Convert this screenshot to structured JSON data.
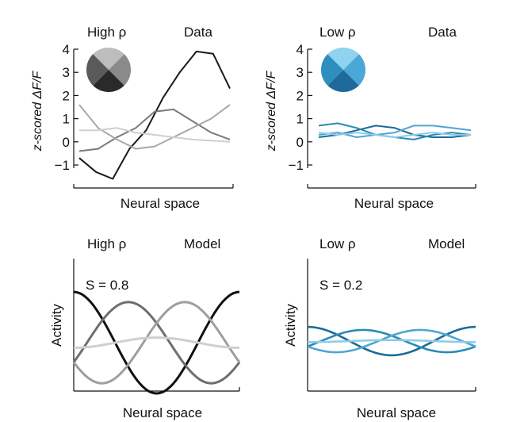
{
  "panels": [
    {
      "id": "data-high",
      "title_left": "High ρ",
      "title_right": "Data",
      "ylabel": "z-scored ΔF/F",
      "xlabel": "Neural space",
      "yticks": [
        "4",
        "3",
        "2",
        "1",
        "0",
        "−1"
      ]
    },
    {
      "id": "data-low",
      "title_left": "Low ρ",
      "title_right": "Data",
      "ylabel": "z-scored ΔF/F",
      "xlabel": "Neural space",
      "yticks": [
        "4",
        "3",
        "2",
        "1",
        "0",
        "−1"
      ]
    },
    {
      "id": "model-high",
      "title_left": "High ρ",
      "title_right": "Model",
      "ylabel": "Activity",
      "xlabel": "Neural space",
      "annotation": "S = 0.8"
    },
    {
      "id": "model-low",
      "title_left": "Low ρ",
      "title_right": "Model",
      "ylabel": "Activity",
      "xlabel": "Neural space",
      "annotation": "S = 0.2"
    }
  ],
  "chart_data": [
    {
      "type": "line",
      "panel": "data-high",
      "title": "High ρ Data",
      "xlabel": "Neural space",
      "ylabel": "z-scored ΔF/F",
      "ylim": [
        -1.5,
        4
      ],
      "x": [
        0,
        1,
        2,
        3,
        4,
        5,
        6,
        7,
        8,
        9,
        10
      ],
      "series": [
        {
          "color": "#1a1a1a",
          "values": [
            -0.7,
            -1.3,
            -1.6,
            -0.3,
            0.5,
            1.9,
            3.0,
            3.9,
            3.8,
            2.3,
            null
          ]
        },
        {
          "color": "#7a7a7a",
          "values": [
            -0.4,
            -0.3,
            0.2,
            0.6,
            1.3,
            1.4,
            0.9,
            0.4,
            0.1,
            null,
            null
          ]
        },
        {
          "color": "#a8a8a8",
          "values": [
            1.6,
            0.6,
            0.1,
            -0.3,
            -0.2,
            0.2,
            0.6,
            1.0,
            1.6,
            null,
            null
          ]
        },
        {
          "color": "#cfcfcf",
          "values": [
            0.5,
            0.5,
            0.6,
            0.4,
            0.3,
            0.2,
            0.1,
            0.05,
            0.0,
            null,
            null
          ]
        }
      ],
      "grid": false
    },
    {
      "type": "line",
      "panel": "data-low",
      "title": "Low ρ Data",
      "xlabel": "Neural space",
      "ylabel": "z-scored ΔF/F",
      "ylim": [
        -1.5,
        4
      ],
      "x": [
        0,
        1,
        2,
        3,
        4,
        5,
        6,
        7,
        8
      ],
      "series": [
        {
          "color": "#1a6b96",
          "values": [
            0.2,
            0.3,
            0.5,
            0.7,
            0.6,
            0.3,
            0.2,
            0.2,
            0.3
          ]
        },
        {
          "color": "#2a8ab5",
          "values": [
            0.7,
            0.8,
            0.6,
            0.3,
            0.2,
            0.1,
            0.3,
            0.4,
            0.3
          ]
        },
        {
          "color": "#4ea6d0",
          "values": [
            0.3,
            0.4,
            0.2,
            0.3,
            0.4,
            0.7,
            0.7,
            0.6,
            0.5
          ]
        },
        {
          "color": "#8fcbe8",
          "values": [
            0.4,
            0.3,
            0.4,
            0.3,
            0.2,
            0.3,
            0.4,
            0.3,
            0.3
          ]
        }
      ],
      "grid": false
    },
    {
      "type": "line",
      "panel": "model-high",
      "title": "High ρ Model",
      "xlabel": "Neural space",
      "ylabel": "Activity",
      "annotation": "S = 0.8",
      "ylim": [
        -1.2,
        1.2
      ],
      "x_range": [
        0,
        1
      ],
      "series": [
        {
          "color": "#111111",
          "amplitude": 1.0,
          "phase": 0.0,
          "offset": 0.0
        },
        {
          "color": "#6e6e6e",
          "amplitude": 0.8,
          "phase": 0.33,
          "offset": 0.0
        },
        {
          "color": "#9e9e9e",
          "amplitude": 0.8,
          "phase": 0.67,
          "offset": 0.0
        },
        {
          "color": "#cfcfcf",
          "amplitude": 0.1,
          "phase": 0.5,
          "offset": 0.0
        }
      ],
      "grid": false
    },
    {
      "type": "line",
      "panel": "model-low",
      "title": "Low ρ Model",
      "xlabel": "Neural space",
      "ylabel": "Activity",
      "annotation": "S = 0.2",
      "ylim": [
        -1.2,
        1.2
      ],
      "x_range": [
        0,
        1
      ],
      "series": [
        {
          "color": "#1a6b96",
          "amplitude": 0.28,
          "phase": 0.0,
          "offset": 0.0
        },
        {
          "color": "#2a8ab5",
          "amplitude": 0.22,
          "phase": 0.33,
          "offset": 0.0
        },
        {
          "color": "#4ea6d0",
          "amplitude": 0.22,
          "phase": 0.67,
          "offset": 0.0
        },
        {
          "color": "#8fcbe8",
          "amplitude": 0.02,
          "phase": 0.5,
          "offset": 0.0
        }
      ],
      "grid": false
    }
  ],
  "insets": [
    {
      "panel": "data-high",
      "colors": [
        "#bdbdbd",
        "#8a8a8a",
        "#2a2a2a",
        "#5a5a5a"
      ]
    },
    {
      "panel": "data-low",
      "colors": [
        "#8fd3f0",
        "#4aa8d8",
        "#1e6a9a",
        "#2e8fbf"
      ]
    }
  ]
}
